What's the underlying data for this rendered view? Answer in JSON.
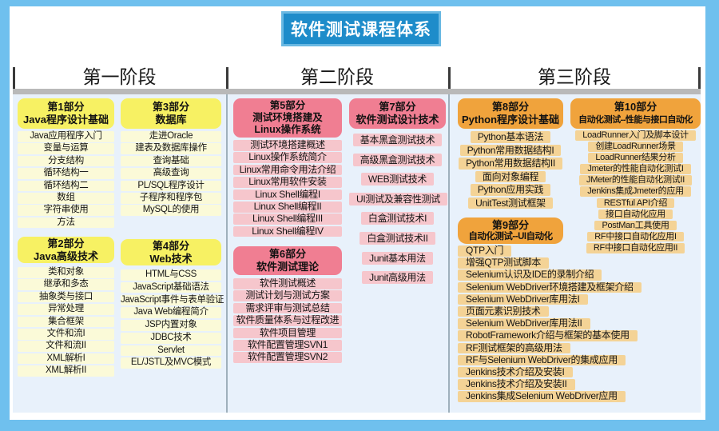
{
  "title": "软件测试课程体系",
  "stage_labels": [
    "第一阶段",
    "第二阶段",
    "第三阶段"
  ],
  "colors": {
    "border_blue": "#6fc0ee",
    "banner_blue": "#1e8cca",
    "content_bg": "#e8f1fb",
    "stage1_header": "#f7f163",
    "stage1_item": "#fbfad8",
    "stage2_header": "#f07e92",
    "stage2_item": "#f6c6cc",
    "stage3_header": "#f0a33c",
    "stage3_item": "#f4d396"
  },
  "parts": {
    "p1": {
      "no": "第1部分",
      "name": "Java程序设计基础",
      "items": [
        "Java应用程序入门",
        "变量与运算",
        "分支结构",
        "循环结构一",
        "循环结构二",
        "数组",
        "字符串使用",
        "方法"
      ]
    },
    "p2": {
      "no": "第2部分",
      "name": "Java高级技术",
      "items": [
        "类和对象",
        "继承和多态",
        "抽象类与接口",
        "异常处理",
        "集合框架",
        "文件和流I",
        "文件和流II",
        "XML解析I",
        "XML解析II"
      ]
    },
    "p3": {
      "no": "第3部分",
      "name": "数据库",
      "items": [
        "走进Oracle",
        "建表及数据库操作",
        "查询基础",
        "高级查询",
        "PL/SQL程序设计",
        "子程序和程序包",
        "MySQL的使用"
      ]
    },
    "p4": {
      "no": "第4部分",
      "name": "Web技术",
      "items": [
        "HTML与CSS",
        "JavaScript基础语法",
        "JavaScript事件与表单验证",
        "Java Web编程简介",
        "JSP内置对象",
        "JDBC技术",
        "Servlet",
        "EL/JSTL及MVC模式"
      ]
    },
    "p5": {
      "no": "第5部分",
      "name": "测试环境搭建及",
      "name2": "Linux操作系统",
      "items": [
        "测试环境搭建概述",
        "Linux操作系统简介",
        "Linux常用命令用法介绍",
        "Linux常用软件安装",
        "Linux Shell编程I",
        "Linux Shell编程II",
        "Linux Shell编程III",
        "Linux Shell编程IV"
      ]
    },
    "p6": {
      "no": "第6部分",
      "name": "软件测试理论",
      "items": [
        "软件测试概述",
        "测试计划与测试方案",
        "需求评审与测试总结",
        "软件质量体系与过程改进",
        "软件项目管理",
        "软件配置管理SVN1",
        "软件配置管理SVN2"
      ]
    },
    "p7": {
      "no": "第7部分",
      "name": "软件测试设计技术",
      "items": [
        "基本黑盒测试技术",
        "高级黑盒测试技术",
        "WEB测试技术",
        "UI测试及兼容性测试",
        "白盒测试技术I",
        "白盒测试技术II",
        "Junit基本用法",
        "Junit高级用法"
      ]
    },
    "p8": {
      "no": "第8部分",
      "name": "Python程序设计基础",
      "items": [
        "Python基本语法",
        "Python常用数据结构I",
        "Python常用数据结构II",
        "面向对象编程",
        "Python应用实践",
        "UnitTest测试框架"
      ]
    },
    "p9": {
      "no": "第9部分",
      "name": "自动化测试--UI自动化",
      "items": [
        "QTP入门",
        "增强QTP测试脚本",
        "Selenium认识及IDE的录制介绍",
        "Selenium WebDriver环境搭建及框架介绍",
        "Selenium WebDriver库用法I",
        "页面元素识别技术",
        "Selenium WebDriver库用法II",
        "RobotFramework介绍与框架的基本使用",
        "RF测试框架的高级用法",
        "RF与Selenium WebDriver的集成应用",
        "Jenkins技术介绍及安装I",
        "Jenkins技术介绍及安装II",
        "Jenkins集成Selenium WebDriver应用"
      ]
    },
    "p10": {
      "no": "第10部分",
      "name": "自动化测试--性能与接口自动化",
      "items": [
        "LoadRunner入门及脚本设计",
        "创建LoadRunner场景",
        "LoadRunner结果分析",
        "Jmeter的性能自动化测试I",
        "JMeter的性能自动化测试II",
        "Jenkins集成Jmeter的应用",
        "RESTful API介绍",
        "接口自动化应用",
        "PostMan工具使用",
        "RF中接口自动化应用I",
        "RF中接口自动化应用II"
      ]
    }
  }
}
